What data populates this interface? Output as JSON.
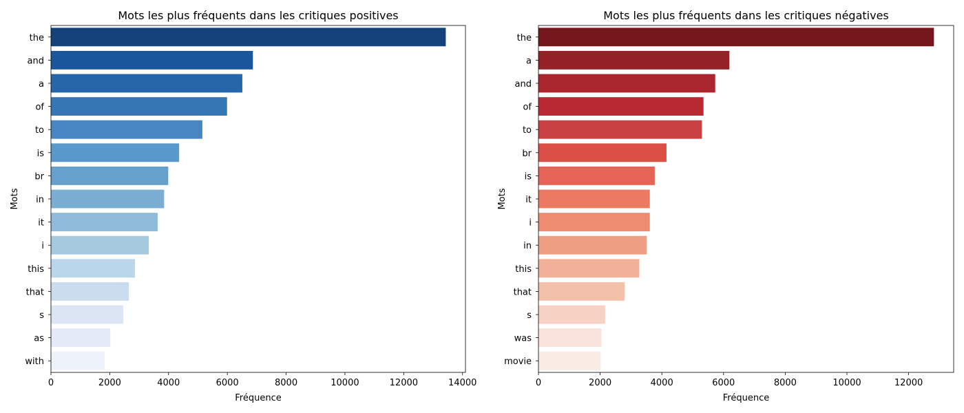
{
  "chart_data": [
    {
      "type": "bar",
      "orientation": "horizontal",
      "title": "Mots les plus fréquents dans les critiques positives",
      "xlabel": "Fréquence",
      "ylabel": "Mots",
      "xlim": [
        0,
        14100
      ],
      "xticks": [
        0,
        2000,
        4000,
        6000,
        8000,
        10000,
        12000,
        14000
      ],
      "grid": false,
      "palette": "Blues_r",
      "categories": [
        "the",
        "and",
        "a",
        "of",
        "to",
        "is",
        "br",
        "in",
        "it",
        "i",
        "this",
        "that",
        "s",
        "as",
        "with"
      ],
      "values": [
        13430,
        6870,
        6510,
        5990,
        5150,
        4360,
        3990,
        3850,
        3630,
        3330,
        2860,
        2650,
        2460,
        2020,
        1830
      ],
      "colors": [
        "#15427a",
        "#1a569c",
        "#2766a9",
        "#3576b5",
        "#4786c0",
        "#5898ca",
        "#65a1cb",
        "#7aaed3",
        "#8fbbd9",
        "#a5c9df",
        "#b9d6ea",
        "#cbdcee",
        "#dbe5f4",
        "#e4eaf6",
        "#edf2fb"
      ]
    },
    {
      "type": "bar",
      "orientation": "horizontal",
      "title": "Mots les plus fréquents dans les critiques négatives",
      "xlabel": "Fréquence",
      "ylabel": "Mots",
      "xlim": [
        0,
        13460
      ],
      "xticks": [
        0,
        2000,
        4000,
        6000,
        8000,
        10000,
        12000
      ],
      "grid": false,
      "palette": "Reds_r",
      "categories": [
        "the",
        "a",
        "and",
        "of",
        "to",
        "br",
        "is",
        "it",
        "i",
        "in",
        "this",
        "that",
        "s",
        "was",
        "movie"
      ],
      "values": [
        12820,
        6190,
        5730,
        5350,
        5300,
        4150,
        3770,
        3610,
        3610,
        3510,
        3270,
        2790,
        2160,
        2040,
        2020
      ],
      "colors": [
        "#76161d",
        "#932126",
        "#aa2730",
        "#ba2a32",
        "#c94140",
        "#dc4f45",
        "#e56456",
        "#ea7b62",
        "#ed8c70",
        "#ee9e83",
        "#f1b098",
        "#f3c0aa",
        "#f7d2c4",
        "#f9e2d9",
        "#fbece6"
      ]
    }
  ]
}
